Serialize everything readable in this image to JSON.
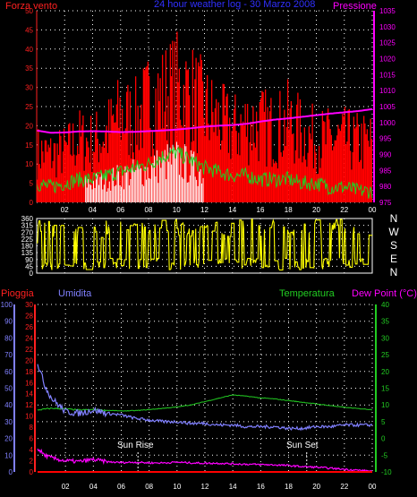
{
  "chart_data": [
    {
      "type": "line",
      "title": "24 hour weather log - 30 Marzo 2008",
      "left_axis_label": "Forza vento",
      "right_axis_label": "Pressione",
      "left_ylim": [
        0,
        50
      ],
      "left_ticks": [
        "0",
        "5",
        "10",
        "15",
        "20",
        "25",
        "30",
        "35",
        "40",
        "45",
        "50"
      ],
      "right_ylim": [
        975,
        1035
      ],
      "right_ticks": [
        "975",
        "980",
        "985",
        "990",
        "995",
        "1000",
        "1005",
        "1010",
        "1015",
        "1020",
        "1025",
        "1030",
        "1035"
      ],
      "x_ticks": [
        "02",
        "04",
        "06",
        "08",
        "10",
        "12",
        "14",
        "16",
        "18",
        "20",
        "22",
        "00"
      ],
      "grid": true,
      "colors": {
        "gust": "#ff0000",
        "avg": "#22cc22",
        "rain": "#ffffff",
        "pressure": "#ff00ff"
      },
      "series": [
        {
          "key": "pressure",
          "axis": "right",
          "x": [
            0,
            1,
            2,
            3,
            4,
            5,
            6,
            7,
            8,
            9,
            10,
            11,
            12,
            13,
            14,
            15,
            16,
            17,
            18,
            19,
            20,
            21,
            22,
            23,
            24
          ],
          "values": [
            997.5,
            996.8,
            996.9,
            997.2,
            997.3,
            997.2,
            997.0,
            997.1,
            997.3,
            997.5,
            997.8,
            998.2,
            998.7,
            999.0,
            999.2,
            999.6,
            1000.3,
            1000.9,
            1001.3,
            1001.8,
            1002.3,
            1002.8,
            1003.2,
            1003.6,
            1004.2
          ]
        },
        {
          "key": "gust_envelope",
          "axis": "left",
          "x": [
            0,
            1,
            2,
            3,
            4,
            5,
            6,
            7,
            8,
            9,
            10,
            11,
            12,
            13,
            14,
            15,
            16,
            17,
            18,
            19,
            20,
            21,
            22,
            23,
            24
          ],
          "values": [
            17,
            16,
            17,
            21,
            20,
            23,
            29,
            27,
            33,
            35,
            38,
            36,
            31,
            27,
            24,
            26,
            26,
            24,
            27,
            23,
            21,
            21,
            21,
            20,
            20
          ]
        },
        {
          "key": "avg_wind",
          "axis": "left",
          "x": [
            0,
            1,
            2,
            3,
            4,
            5,
            6,
            7,
            8,
            9,
            10,
            11,
            12,
            13,
            14,
            15,
            16,
            17,
            18,
            19,
            20,
            21,
            22,
            23,
            24
          ],
          "values": [
            5,
            4,
            5,
            6,
            6,
            7,
            8,
            9,
            10,
            12,
            13,
            11,
            9,
            8,
            7,
            7,
            6,
            6,
            6,
            5,
            5,
            4,
            4,
            3,
            3
          ]
        }
      ]
    },
    {
      "type": "scatter",
      "right_labels": [
        "N",
        "W",
        "S",
        "E",
        "N"
      ],
      "ylim": [
        0,
        360
      ],
      "ticks": [
        "0",
        "45",
        "90",
        "135",
        "180",
        "225",
        "270",
        "315",
        "360"
      ],
      "color": "#ffff00"
    },
    {
      "type": "line",
      "labels": {
        "rain": "Pioggia",
        "humidity": "Umidita",
        "temp": "Temperatura",
        "dew": "Dew Point (°C)"
      },
      "humidity_ticks": [
        "0",
        "10",
        "20",
        "30",
        "40",
        "50",
        "60",
        "70",
        "80",
        "90",
        "100"
      ],
      "rain_ticks": [
        "0",
        "2",
        "4",
        "6",
        "8",
        "10",
        "12",
        "14",
        "16",
        "18",
        "20",
        "22",
        "24",
        "26",
        "28",
        "30"
      ],
      "temp_ticks": [
        "-10",
        "-5",
        "0",
        "5",
        "10",
        "15",
        "20",
        "25",
        "30",
        "35",
        "40"
      ],
      "x_ticks": [
        "02",
        "04",
        "06",
        "08",
        "10",
        "12",
        "14",
        "16",
        "18",
        "20",
        "22",
        "00"
      ],
      "annotations": {
        "sunrise": "Sun Rise",
        "sunset": "Sun Set"
      },
      "sunrise_hour": 7.2,
      "sunset_hour": 19.3,
      "colors": {
        "rain": "#ff0000",
        "humidity": "#8080ff",
        "temp": "#22cc22",
        "dew": "#ff00ff"
      },
      "series": [
        {
          "key": "humidity",
          "axis": "humidity",
          "x": [
            0,
            0.5,
            1,
            1.5,
            2,
            3,
            4,
            5,
            6,
            7,
            8,
            9,
            10,
            11,
            12,
            13,
            14,
            15,
            16,
            17,
            18,
            19,
            20,
            21,
            22,
            23,
            24
          ],
          "values": [
            65,
            52,
            44,
            40,
            36,
            35,
            37,
            35,
            34,
            32,
            31,
            30,
            30,
            29,
            29,
            28,
            28,
            27,
            27,
            27,
            26,
            26,
            27,
            27,
            28,
            28,
            28
          ]
        },
        {
          "key": "temp",
          "axis": "temp",
          "x": [
            0,
            1,
            2,
            3,
            4,
            5,
            6,
            7,
            8,
            9,
            10,
            11,
            12,
            13,
            14,
            15,
            16,
            17,
            18,
            19,
            20,
            21,
            22,
            23,
            24
          ],
          "values": [
            8.5,
            9,
            8.8,
            8.5,
            8.6,
            8.4,
            8.2,
            8.3,
            8.6,
            9,
            9.4,
            10,
            11,
            12,
            13,
            12.6,
            12.1,
            11.8,
            11.3,
            10.8,
            10.3,
            9.8,
            9.3,
            8.9,
            8.6
          ]
        },
        {
          "key": "dew",
          "axis": "temp",
          "x": [
            0,
            0.5,
            1,
            1.5,
            2,
            3,
            4,
            5,
            6,
            7,
            8,
            9,
            10,
            11,
            12,
            13,
            14,
            15,
            16,
            17,
            18,
            19,
            20,
            21,
            22,
            23,
            24
          ],
          "values": [
            -3,
            -5,
            -5.8,
            -6.3,
            -6.7,
            -6.9,
            -6.3,
            -7,
            -7.2,
            -7.1,
            -7.3,
            -7.3,
            -7.1,
            -7.3,
            -7.4,
            -7.4,
            -7.6,
            -7.7,
            -7.8,
            -7.9,
            -8.1,
            -8.4,
            -8.6,
            -8.9,
            -9.2,
            -9.5,
            -9.8
          ]
        },
        {
          "key": "rain",
          "axis": "rain",
          "x": [
            0,
            24
          ],
          "values": [
            0,
            0
          ]
        }
      ]
    }
  ]
}
